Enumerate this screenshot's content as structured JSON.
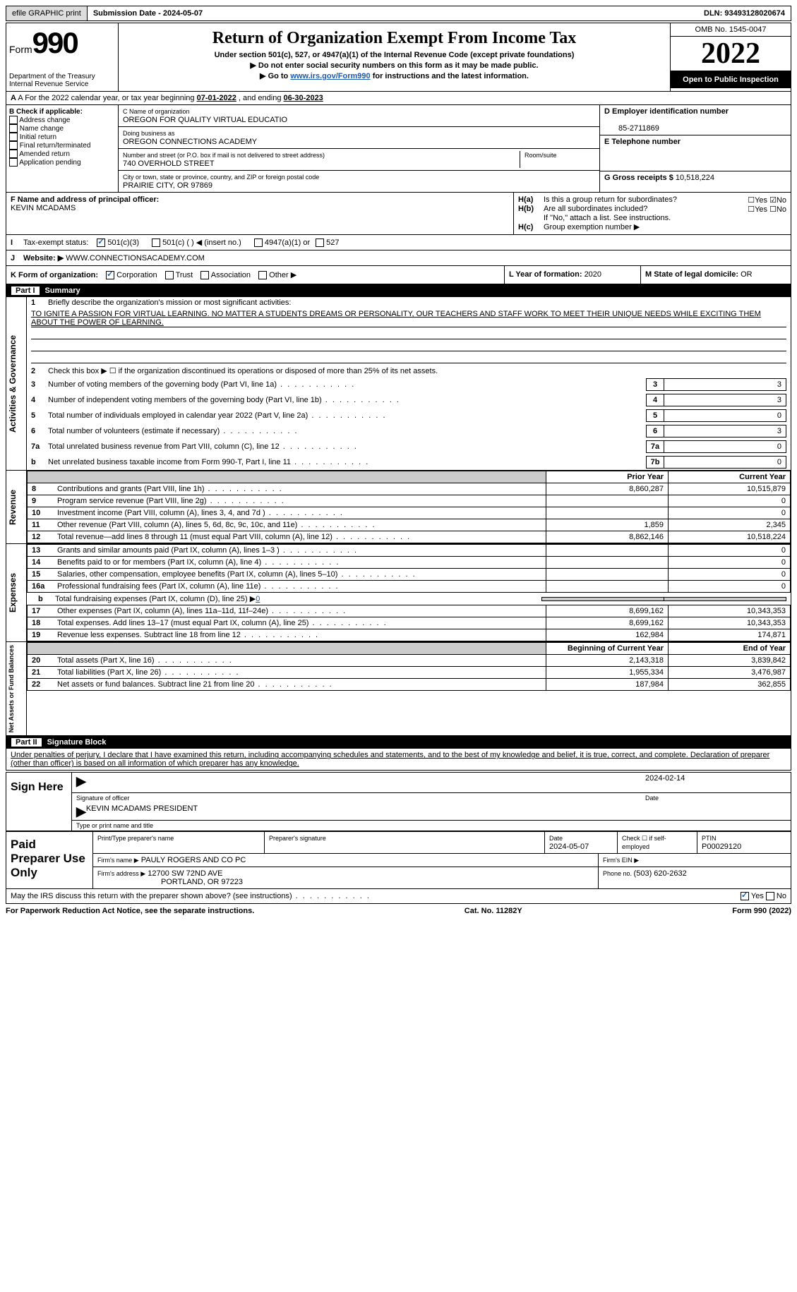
{
  "topbar": {
    "efile": "efile GRAPHIC print",
    "sub_label": "Submission Date - ",
    "sub_date": "2024-05-07",
    "dln_label": "DLN: ",
    "dln": "93493128020674"
  },
  "header": {
    "form_word": "Form",
    "form_num": "990",
    "dept": "Department of the Treasury\nInternal Revenue Service",
    "title": "Return of Organization Exempt From Income Tax",
    "sub1": "Under section 501(c), 527, or 4947(a)(1) of the Internal Revenue Code (except private foundations)",
    "sub2": "▶ Do not enter social security numbers on this form as it may be made public.",
    "sub3_pre": "▶ Go to ",
    "sub3_link": "www.irs.gov/Form990",
    "sub3_post": " for instructions and the latest information.",
    "omb": "OMB No. 1545-0047",
    "year": "2022",
    "open": "Open to Public Inspection"
  },
  "A": {
    "text": "A For the 2022 calendar year, or tax year beginning ",
    "begin": "07-01-2022",
    "mid": " , and ending ",
    "end": "06-30-2023"
  },
  "B": {
    "label": "B Check if applicable:",
    "items": [
      "Address change",
      "Name change",
      "Initial return",
      "Final return/terminated",
      "Amended return",
      "Application pending"
    ]
  },
  "C": {
    "name_label": "C Name of organization",
    "name": "OREGON FOR QUALITY VIRTUAL EDUCATIO",
    "dba_label": "Doing business as",
    "dba": "OREGON CONNECTIONS ACADEMY",
    "street_label": "Number and street (or P.O. box if mail is not delivered to street address)",
    "room_label": "Room/suite",
    "street": "740 OVERHOLD STREET",
    "city_label": "City or town, state or province, country, and ZIP or foreign postal code",
    "city": "PRAIRIE CITY, OR  97869"
  },
  "D": {
    "label": "D Employer identification number",
    "val": "85-2711869"
  },
  "E": {
    "label": "E Telephone number",
    "val": ""
  },
  "G": {
    "label": "G Gross receipts $ ",
    "val": "10,518,224"
  },
  "F": {
    "label": "F Name and address of principal officer:",
    "val": "KEVIN MCADAMS"
  },
  "H": {
    "a": "Is this a group return for subordinates?",
    "a_no": true,
    "b": "Are all subordinates included?",
    "b_note": "If \"No,\" attach a list. See instructions.",
    "c": "Group exemption number ▶"
  },
  "I": {
    "label": "Tax-exempt status:",
    "opts": [
      "501(c)(3)",
      "501(c) (  ) ◀ (insert no.)",
      "4947(a)(1) or",
      "527"
    ],
    "checked": 0
  },
  "J": {
    "label": "Website: ▶",
    "val": "WWW.CONNECTIONSACADEMY.COM"
  },
  "K": {
    "label": "K Form of organization:",
    "opts": [
      "Corporation",
      "Trust",
      "Association",
      "Other ▶"
    ],
    "checked": 0
  },
  "L": {
    "label": "L Year of formation: ",
    "val": "2020"
  },
  "M": {
    "label": "M State of legal domicile: ",
    "val": "OR"
  },
  "part1": {
    "num": "Part I",
    "title": "Summary"
  },
  "summary": {
    "l1": "Briefly describe the organization's mission or most significant activities:",
    "mission": "TO IGNITE A PASSION FOR VIRTUAL LEARNING. NO MATTER A STUDENTS DREAMS OR PERSONALITY, OUR TEACHERS AND STAFF WORK TO MEET THEIR UNIQUE NEEDS WHILE EXCITING THEM ABOUT THE POWER OF LEARNING.",
    "l2": "Check this box ▶ ☐ if the organization discontinued its operations or disposed of more than 25% of its net assets.",
    "lines_box": [
      {
        "n": "3",
        "t": "Number of voting members of the governing body (Part VI, line 1a)",
        "b": "3",
        "v": "3"
      },
      {
        "n": "4",
        "t": "Number of independent voting members of the governing body (Part VI, line 1b)",
        "b": "4",
        "v": "3"
      },
      {
        "n": "5",
        "t": "Total number of individuals employed in calendar year 2022 (Part V, line 2a)",
        "b": "5",
        "v": "0"
      },
      {
        "n": "6",
        "t": "Total number of volunteers (estimate if necessary)",
        "b": "6",
        "v": "3"
      },
      {
        "n": "7a",
        "t": "Total unrelated business revenue from Part VIII, column (C), line 12",
        "b": "7a",
        "v": "0"
      },
      {
        "n": "b",
        "t": "Net unrelated business taxable income from Form 990-T, Part I, line 11",
        "b": "7b",
        "v": "0"
      }
    ],
    "hdr_prior": "Prior Year",
    "hdr_current": "Current Year",
    "revenue": [
      {
        "n": "8",
        "t": "Contributions and grants (Part VIII, line 1h)",
        "p": "8,860,287",
        "c": "10,515,879"
      },
      {
        "n": "9",
        "t": "Program service revenue (Part VIII, line 2g)",
        "p": "",
        "c": "0"
      },
      {
        "n": "10",
        "t": "Investment income (Part VIII, column (A), lines 3, 4, and 7d )",
        "p": "",
        "c": "0"
      },
      {
        "n": "11",
        "t": "Other revenue (Part VIII, column (A), lines 5, 6d, 8c, 9c, 10c, and 11e)",
        "p": "1,859",
        "c": "2,345"
      },
      {
        "n": "12",
        "t": "Total revenue—add lines 8 through 11 (must equal Part VIII, column (A), line 12)",
        "p": "8,862,146",
        "c": "10,518,224"
      }
    ],
    "expenses": [
      {
        "n": "13",
        "t": "Grants and similar amounts paid (Part IX, column (A), lines 1–3 )",
        "p": "",
        "c": "0"
      },
      {
        "n": "14",
        "t": "Benefits paid to or for members (Part IX, column (A), line 4)",
        "p": "",
        "c": "0"
      },
      {
        "n": "15",
        "t": "Salaries, other compensation, employee benefits (Part IX, column (A), lines 5–10)",
        "p": "",
        "c": "0"
      },
      {
        "n": "16a",
        "t": "Professional fundraising fees (Part IX, column (A), line 11e)",
        "p": "",
        "c": "0"
      }
    ],
    "l16b_pre": "Total fundraising expenses (Part IX, column (D), line 25) ▶",
    "l16b_val": "0",
    "expenses2": [
      {
        "n": "17",
        "t": "Other expenses (Part IX, column (A), lines 11a–11d, 11f–24e)",
        "p": "8,699,162",
        "c": "10,343,353"
      },
      {
        "n": "18",
        "t": "Total expenses. Add lines 13–17 (must equal Part IX, column (A), line 25)",
        "p": "8,699,162",
        "c": "10,343,353"
      },
      {
        "n": "19",
        "t": "Revenue less expenses. Subtract line 18 from line 12",
        "p": "162,984",
        "c": "174,871"
      }
    ],
    "hdr_begin": "Beginning of Current Year",
    "hdr_end": "End of Year",
    "netassets": [
      {
        "n": "20",
        "t": "Total assets (Part X, line 16)",
        "p": "2,143,318",
        "c": "3,839,842"
      },
      {
        "n": "21",
        "t": "Total liabilities (Part X, line 26)",
        "p": "1,955,334",
        "c": "3,476,987"
      },
      {
        "n": "22",
        "t": "Net assets or fund balances. Subtract line 21 from line 20",
        "p": "187,984",
        "c": "362,855"
      }
    ]
  },
  "vtabs": {
    "ag": "Activities & Governance",
    "rev": "Revenue",
    "exp": "Expenses",
    "na": "Net Assets or Fund Balances"
  },
  "part2": {
    "num": "Part II",
    "title": "Signature Block",
    "decl": "Under penalties of perjury, I declare that I have examined this return, including accompanying schedules and statements, and to the best of my knowledge and belief, it is true, correct, and complete. Declaration of preparer (other than officer) is based on all information of which preparer has any knowledge."
  },
  "sign": {
    "here": "Sign Here",
    "sig_label": "Signature of officer",
    "date": "2024-02-14",
    "date_label": "Date",
    "name": "KEVIN MCADAMS  PRESIDENT",
    "name_label": "Type or print name and title"
  },
  "paid": {
    "title": "Paid Preparer Use Only",
    "r1": {
      "a": "Print/Type preparer's name",
      "b": "Preparer's signature",
      "c_label": "Date",
      "c": "2024-05-07",
      "d": "Check ☐ if self-employed",
      "e_label": "PTIN",
      "e": "P00029120"
    },
    "r2": {
      "a": "Firm's name    ▶",
      "a_val": "PAULY ROGERS AND CO PC",
      "b": "Firm's EIN ▶"
    },
    "r3": {
      "a": "Firm's address ▶",
      "a_val": "12700 SW 72ND AVE",
      "a_val2": "PORTLAND, OR  97223",
      "b": "Phone no. ",
      "b_val": "(503) 620-2632"
    }
  },
  "may": "May the IRS discuss this return with the preparer shown above? (see instructions)",
  "footer": {
    "a": "For Paperwork Reduction Act Notice, see the separate instructions.",
    "b": "Cat. No. 11282Y",
    "c": "Form 990 (2022)"
  }
}
